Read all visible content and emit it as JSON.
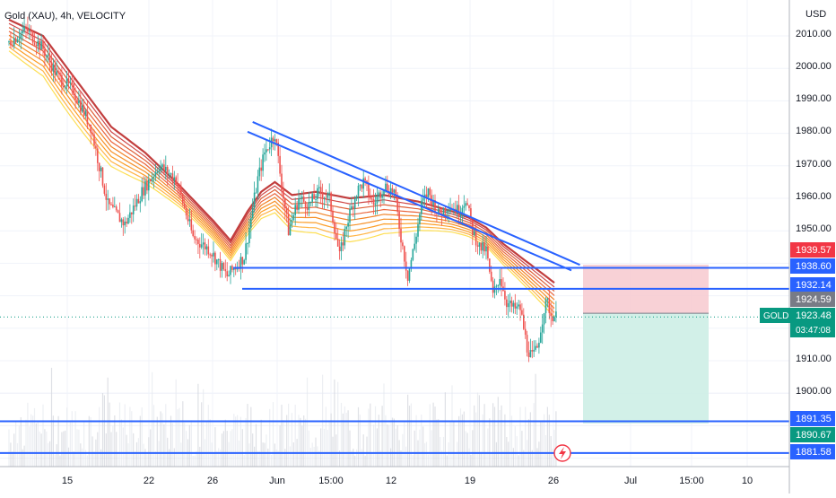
{
  "header": {
    "symbol_title": "Gold (XAU), 4h, VELOCITY"
  },
  "price_axis": {
    "currency": "USD",
    "ticks": [
      "2010.00",
      "2000.00",
      "1990.00",
      "1980.00",
      "1970.00",
      "1960.00",
      "1950.00",
      "1910.00",
      "1900.00"
    ]
  },
  "time_axis": {
    "labels": [
      "15",
      "22",
      "26",
      "Jun",
      "15:00",
      "12",
      "19",
      "26",
      "Jul",
      "15:00",
      "10"
    ]
  },
  "price_labels": {
    "line_1939": "1939.57",
    "line_1938": "1938.60",
    "line_1932": "1932.14",
    "last_close": "1924.59",
    "current_symbol": "GOLD",
    "current_price": "1923.48",
    "countdown": "03:47:08",
    "line_1891": "1891.35",
    "line_1890": "1890.67",
    "line_1881": "1881.58"
  },
  "colors": {
    "trendline": "#2962ff",
    "stop_zone": "#f7c9cf",
    "target_zone": "#cdeee6",
    "bull_candle": "#26a69a",
    "bear_candle": "#ef5350",
    "ribbon_dark": "#b71c1c",
    "ribbon_light": "#fdd835",
    "stop_label": "#f23645",
    "target_label": "#089981",
    "level_label": "#2962ff",
    "last_label": "#787b86"
  },
  "icons": {
    "alert": "lightning-bolt-icon"
  },
  "chart_data": {
    "type": "candlestick",
    "title": "Gold (XAU), 4h, VELOCITY",
    "y_unit": "USD",
    "ylim": [
      1874,
      2016
    ],
    "x_ticks": [
      "15",
      "22",
      "26",
      "Jun",
      "15:00",
      "12",
      "19",
      "26",
      "Jul",
      "15:00",
      "10"
    ],
    "y_ticks": [
      2010,
      2000,
      1990,
      1980,
      1970,
      1960,
      1950,
      1910,
      1900
    ],
    "grid": true,
    "price_path": [
      [
        0,
        2008
      ],
      [
        10,
        2012
      ],
      [
        20,
        2006
      ],
      [
        28,
        1998
      ],
      [
        38,
        1993
      ],
      [
        48,
        1982
      ],
      [
        58,
        1958
      ],
      [
        68,
        1952
      ],
      [
        78,
        1962
      ],
      [
        88,
        1970
      ],
      [
        98,
        1966
      ],
      [
        108,
        1948
      ],
      [
        118,
        1944
      ],
      [
        128,
        1936
      ],
      [
        138,
        1942
      ],
      [
        146,
        1966
      ],
      [
        150,
        1974
      ],
      [
        156,
        1980
      ],
      [
        160,
        1964
      ],
      [
        164,
        1950
      ],
      [
        170,
        1960
      ],
      [
        176,
        1958
      ],
      [
        182,
        1962
      ],
      [
        188,
        1960
      ],
      [
        194,
        1942
      ],
      [
        198,
        1952
      ],
      [
        204,
        1962
      ],
      [
        208,
        1965
      ],
      [
        214,
        1958
      ],
      [
        220,
        1964
      ],
      [
        226,
        1962
      ],
      [
        230,
        1948
      ],
      [
        234,
        1936
      ],
      [
        238,
        1946
      ],
      [
        242,
        1958
      ],
      [
        246,
        1962
      ],
      [
        252,
        1955
      ],
      [
        258,
        1958
      ],
      [
        264,
        1956
      ],
      [
        268,
        1960
      ],
      [
        272,
        1950
      ],
      [
        276,
        1945
      ],
      [
        280,
        1944
      ],
      [
        284,
        1930
      ],
      [
        288,
        1936
      ],
      [
        292,
        1928
      ],
      [
        296,
        1926
      ],
      [
        300,
        1926
      ],
      [
        304,
        1914
      ],
      [
        307,
        1911
      ],
      [
        310,
        1914
      ],
      [
        312,
        1920
      ],
      [
        314,
        1926
      ],
      [
        316,
        1928
      ],
      [
        318,
        1924
      ],
      [
        320,
        1924
      ],
      [
        321,
        1923.5
      ]
    ],
    "ribbon_path": [
      [
        0,
        2015
      ],
      [
        20,
        2010
      ],
      [
        40,
        1996
      ],
      [
        60,
        1982
      ],
      [
        80,
        1974
      ],
      [
        100,
        1964
      ],
      [
        120,
        1953
      ],
      [
        130,
        1947
      ],
      [
        140,
        1956
      ],
      [
        148,
        1962
      ],
      [
        156,
        1965
      ],
      [
        166,
        1961
      ],
      [
        180,
        1962
      ],
      [
        200,
        1960
      ],
      [
        220,
        1961
      ],
      [
        240,
        1959
      ],
      [
        260,
        1956
      ],
      [
        270,
        1954
      ],
      [
        280,
        1951
      ],
      [
        290,
        1946
      ],
      [
        300,
        1942
      ],
      [
        310,
        1938
      ],
      [
        320,
        1934
      ]
    ],
    "ribbon_offsets": [
      0,
      -1.2,
      -2.4,
      -3.6,
      -4.8,
      -6.0,
      -7.2,
      -8.4,
      -9.6
    ],
    "horizontal_levels": [
      1938.6,
      1932.14,
      1891.35,
      1881.58
    ],
    "trendlines": [
      {
        "from": [
          143,
          1983.5
        ],
        "to": [
          335,
          1939.5
        ]
      },
      {
        "from": [
          140,
          1980.5
        ],
        "to": [
          330,
          1937.8
        ]
      }
    ],
    "short_position": {
      "entry": 1924.59,
      "stop": 1939.57,
      "target": 1890.67
    }
  }
}
